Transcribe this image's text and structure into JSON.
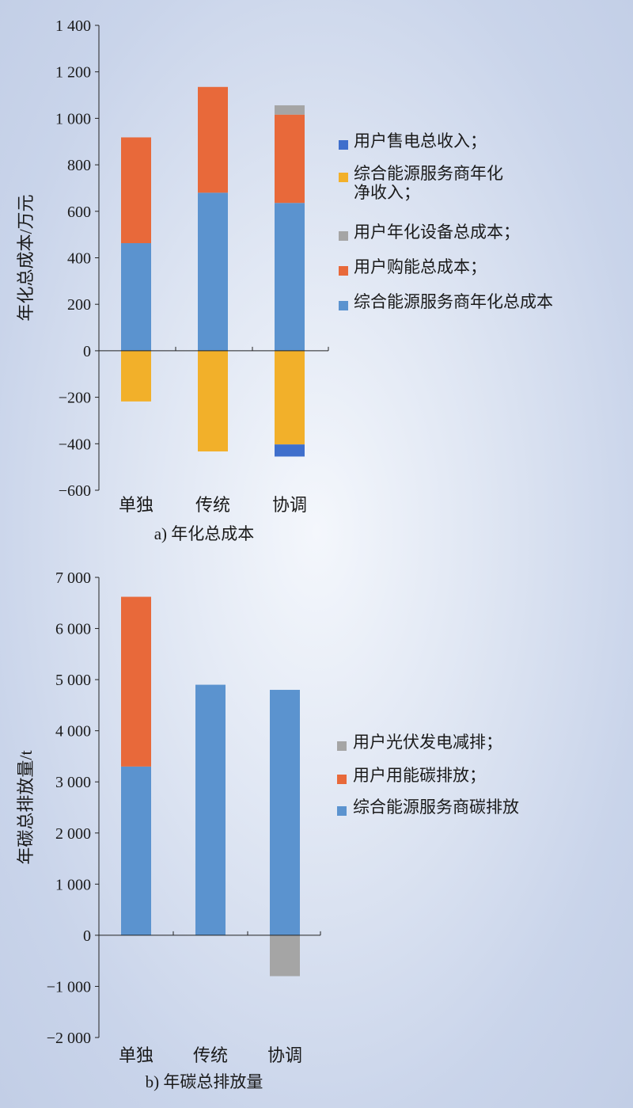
{
  "chart_data": [
    {
      "type": "bar",
      "stacked": true,
      "caption": "a) 年化总成本",
      "ylabel": "年化总成本/万元",
      "xlabel": "",
      "categories": [
        "单独",
        "传统",
        "协调"
      ],
      "ylim": [
        -600,
        1400
      ],
      "yticks": [
        -600,
        -400,
        -200,
        0,
        200,
        400,
        600,
        800,
        1000,
        1200,
        1400
      ],
      "ytick_labels": [
        "−600",
        "−400",
        "−200",
        "0",
        "200",
        "400",
        "600",
        "800",
        "1 000",
        "1 200",
        "1 400"
      ],
      "legend_position": "right",
      "legend_order": [
        "用户售电总收入；",
        "综合能源服务商年化净收入；",
        "用户年化设备总成本；",
        "用户购能总成本；",
        "综合能源服务商年化总成本"
      ],
      "series": [
        {
          "name": "综合能源服务商年化总成本",
          "color": "#5b93cf",
          "values": [
            463,
            680,
            636
          ]
        },
        {
          "name": "用户购能总成本；",
          "color": "#e8693a",
          "values": [
            455,
            455,
            380
          ]
        },
        {
          "name": "用户年化设备总成本；",
          "color": "#a5a5a5",
          "values": [
            0,
            0,
            40
          ]
        },
        {
          "name": "综合能源服务商年化净收入；",
          "color": "#f2b02a",
          "values": [
            -218,
            -433,
            -403
          ]
        },
        {
          "name": "用户售电总收入；",
          "color": "#3f6fcc",
          "values": [
            0,
            0,
            -52
          ]
        }
      ]
    },
    {
      "type": "bar",
      "stacked": true,
      "caption": "b) 年碳总排放量",
      "ylabel": "年碳总排放量/t",
      "xlabel": "",
      "categories": [
        "单独",
        "传统",
        "协调"
      ],
      "ylim": [
        -2000,
        7000
      ],
      "yticks": [
        -2000,
        -1000,
        0,
        1000,
        2000,
        3000,
        4000,
        5000,
        6000,
        7000
      ],
      "ytick_labels": [
        "−2 000",
        "−1 000",
        "0",
        "1 000",
        "2 000",
        "3 000",
        "4 000",
        "5 000",
        "6 000",
        "7 000"
      ],
      "legend_position": "right",
      "legend_order": [
        "用户光伏发电减排；",
        "用户用能碳排放；",
        "综合能源服务商碳排放"
      ],
      "series": [
        {
          "name": "综合能源服务商碳排放",
          "color": "#5b93cf",
          "values": [
            3300,
            4900,
            4800
          ]
        },
        {
          "name": "用户用能碳排放；",
          "color": "#e8693a",
          "values": [
            3320,
            0,
            0
          ]
        },
        {
          "name": "用户光伏发电减排；",
          "color": "#a5a5a5",
          "values": [
            0,
            0,
            -800
          ]
        }
      ]
    }
  ]
}
